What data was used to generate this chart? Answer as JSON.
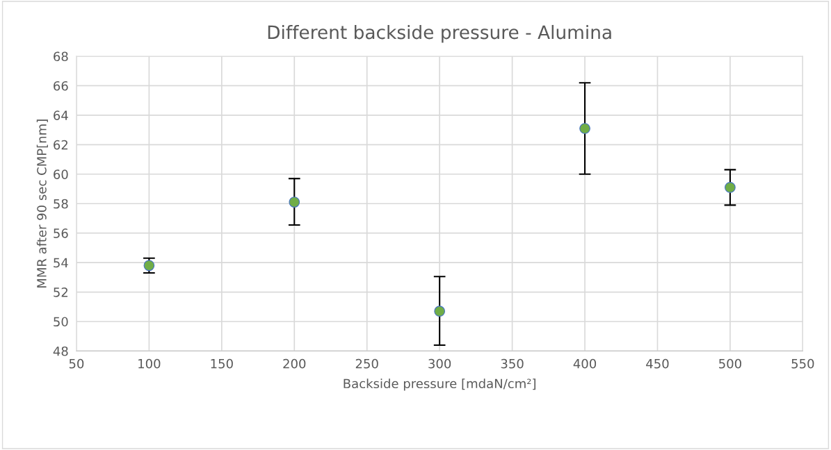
{
  "chart_data": {
    "type": "scatter",
    "title": "Different backside pressure - Alumina",
    "xlabel": "Backside pressure [mdaN/cm²]",
    "ylabel": "MMR after 90 sec CMP[nm]",
    "x": [
      100,
      200,
      300,
      400,
      500
    ],
    "series": [
      {
        "color": "#70ad47",
        "values": [
          53.8,
          58.1,
          50.7,
          63.1,
          59.1
        ],
        "errors": [
          [
            53.3,
            54.3
          ],
          [
            56.55,
            59.7
          ],
          [
            48.4,
            53.05
          ],
          [
            60.0,
            66.2
          ],
          [
            57.9,
            60.3
          ]
        ]
      }
    ],
    "xlim": [
      50,
      550
    ],
    "xticks": [
      50,
      100,
      150,
      200,
      250,
      300,
      350,
      400,
      450,
      500,
      550
    ],
    "ylim": [
      48,
      68
    ],
    "yticks": [
      48,
      50,
      52,
      54,
      56,
      58,
      60,
      62,
      64,
      66,
      68
    ],
    "grid": true,
    "marker": "circle",
    "legend": false
  }
}
